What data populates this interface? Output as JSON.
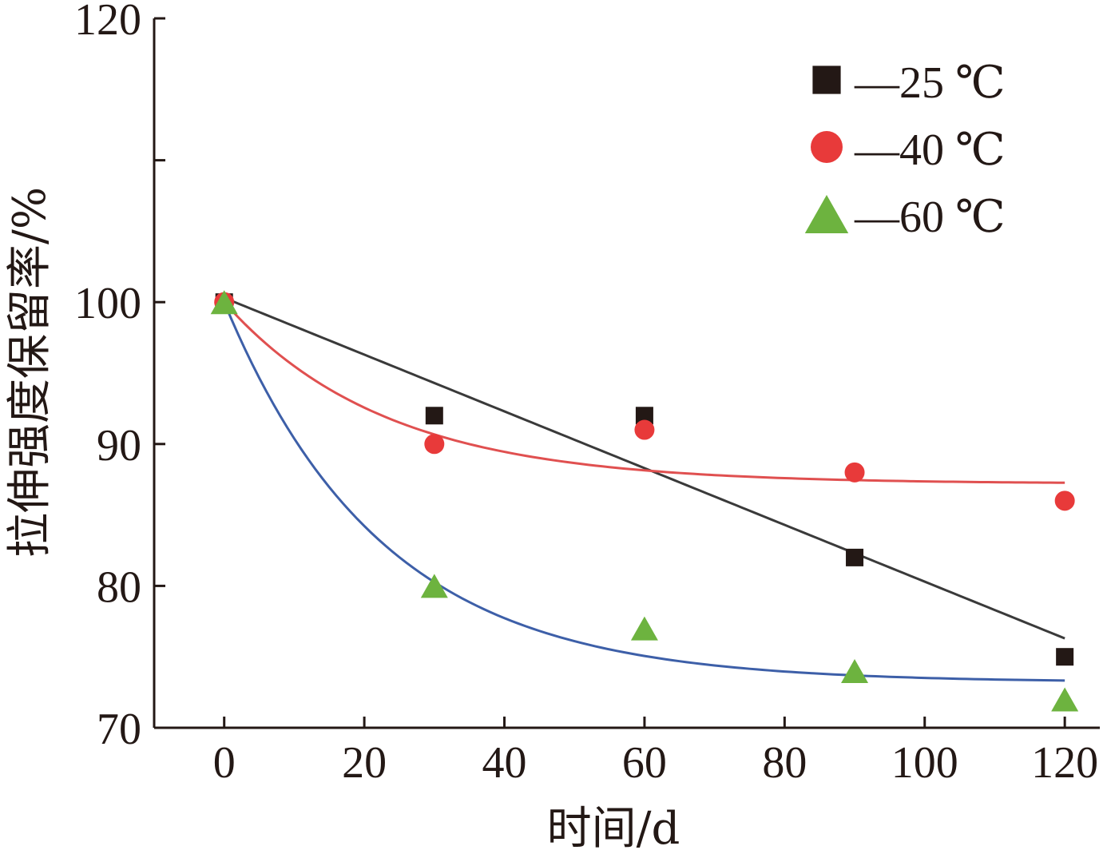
{
  "chart_data": {
    "type": "scatter",
    "xlabel": "时间/d",
    "ylabel": "拉伸强度保留率/%",
    "xlim": [
      -10,
      125
    ],
    "ylim": [
      70,
      120
    ],
    "xticks": [
      0,
      20,
      40,
      60,
      80,
      100,
      120
    ],
    "yticks": [
      70,
      80,
      90,
      100,
      110,
      120
    ],
    "ytick_labels": [
      "70",
      "80",
      "90",
      "100",
      "",
      "120"
    ],
    "legend_position": "top-right",
    "grid": false,
    "series": [
      {
        "name": "—25 ℃",
        "marker": "square",
        "color": "#231815",
        "fit_color": "#3a3a3a",
        "x": [
          0,
          30,
          60,
          90,
          120
        ],
        "y": [
          100,
          92,
          92,
          82,
          75
        ],
        "fit": {
          "kind": "linear",
          "a": 100.3,
          "b": -0.2
        }
      },
      {
        "name": "—40 ℃",
        "marker": "circle",
        "color": "#e83a3a",
        "fit_color": "#e05050",
        "x": [
          0,
          30,
          60,
          90,
          120
        ],
        "y": [
          100,
          90,
          91,
          88,
          86
        ],
        "fit": {
          "kind": "exp",
          "a": 87.2,
          "b": 12.8,
          "tau": 23
        }
      },
      {
        "name": "—60 ℃",
        "marker": "triangle",
        "color": "#6db33f",
        "fit_color": "#3d5fa8",
        "x": [
          0,
          30,
          60,
          90,
          120
        ],
        "y": [
          100,
          80,
          77,
          74,
          72
        ],
        "fit": {
          "kind": "exp",
          "a": 73.2,
          "b": 26.8,
          "tau": 22.5
        }
      }
    ]
  }
}
